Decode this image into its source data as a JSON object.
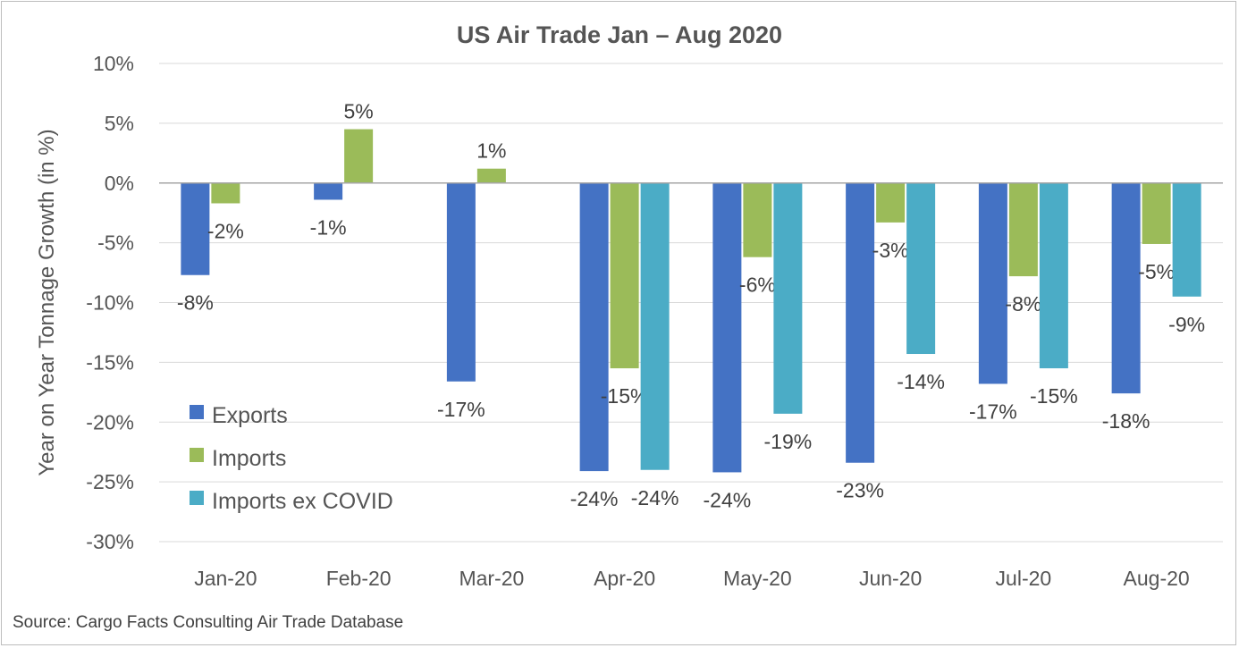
{
  "title": "US Air Trade Jan – Aug 2020",
  "source": "Source: Cargo Facts Consulting Air Trade Database",
  "chart_data": {
    "type": "bar",
    "title": "US Air Trade Jan – Aug 2020",
    "xlabel": "",
    "ylabel": "Year on Year Tonnage Growth (in %)",
    "ylim": [
      -30,
      10
    ],
    "yticks": [
      "10%",
      "5%",
      "0%",
      "-5%",
      "-10%",
      "-15%",
      "-20%",
      "-25%",
      "-30%"
    ],
    "categories": [
      "Jan-20",
      "Feb-20",
      "Mar-20",
      "Apr-20",
      "May-20",
      "Jun-20",
      "Jul-20",
      "Aug-20"
    ],
    "grid": true,
    "legend_position": "bottom-left",
    "series": [
      {
        "name": "Exports",
        "color": "#4472c4",
        "values": [
          -7.7,
          -1.4,
          -16.6,
          -24.1,
          -24.2,
          -23.4,
          -16.8,
          -17.6
        ],
        "labels": [
          "-8%",
          "-1%",
          "-17%",
          "-24%",
          "-24%",
          "-23%",
          "-17%",
          "-18%"
        ]
      },
      {
        "name": "Imports",
        "color": "#9bbb59",
        "values": [
          -1.7,
          4.5,
          1.2,
          -15.5,
          -6.2,
          -3.3,
          -7.8,
          -5.1
        ],
        "labels": [
          "-2%",
          "5%",
          "1%",
          "-15%",
          "-6%",
          "-3%",
          "-8%",
          "-5%"
        ]
      },
      {
        "name": "Imports ex COVID",
        "color": "#4bacc6",
        "values": [
          null,
          null,
          null,
          -24.0,
          -19.3,
          -14.3,
          -15.5,
          -9.5
        ],
        "labels": [
          null,
          null,
          null,
          "-24%",
          "-19%",
          "-14%",
          "-15%",
          "-9%"
        ]
      }
    ]
  }
}
